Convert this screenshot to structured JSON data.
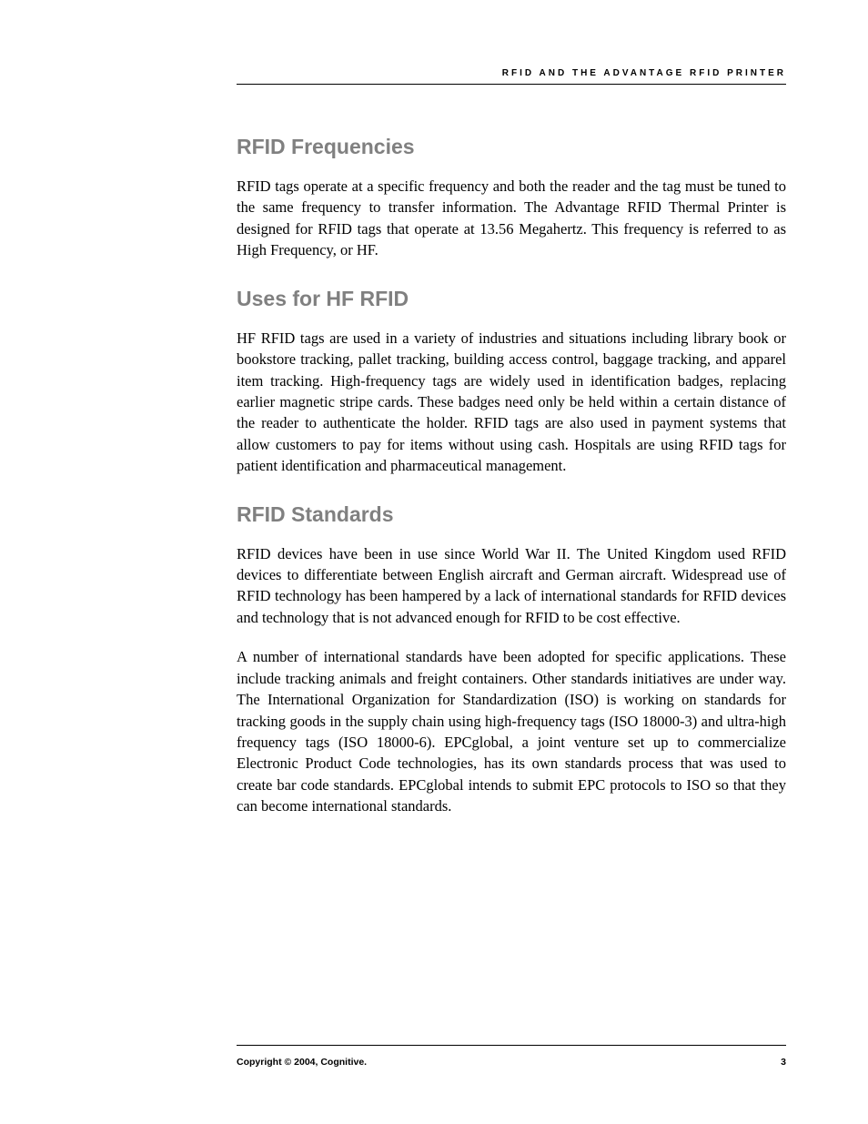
{
  "header": {
    "title": "RFID AND THE ADVANTAGE RFID PRINTER"
  },
  "sections": {
    "frequencies": {
      "heading": "RFID Frequencies",
      "paragraph": "RFID tags operate at a specific frequency and both the reader and the tag must be tuned to the same frequency to transfer information. The Advantage RFID Thermal Printer is designed for RFID tags that operate at 13.56 Megahertz. This frequency is referred to as High Frequency, or HF."
    },
    "uses": {
      "heading": "Uses for HF RFID",
      "paragraph": "HF RFID tags are used in a variety of industries and situations including library book or bookstore tracking, pallet tracking, building access control, baggage tracking, and apparel item tracking. High-frequency tags are widely used in identification badges, replacing earlier magnetic stripe cards. These badges need only be held within a certain distance of the reader to authenticate the holder. RFID tags are also used in payment systems that allow customers to pay for items without using cash. Hospitals are using RFID tags for patient identification and pharmaceutical management."
    },
    "standards": {
      "heading": "RFID Standards",
      "paragraph1": "RFID devices have been in use since World War II. The United Kingdom used RFID devices to differentiate between English aircraft and German aircraft. Widespread use of RFID technology has been hampered by a lack of international standards for RFID devices and technology that is not advanced enough for RFID to be cost effective.",
      "paragraph2": "A number of international standards have been adopted for specific applications. These include tracking animals and freight containers. Other standards initiatives are under way. The International Organization for Standardization (ISO) is working on standards for tracking goods in the supply chain using high-frequency tags (ISO 18000-3) and ultra-high frequency tags (ISO 18000-6). EPCglobal, a joint venture set up to commercialize Electronic Product Code technologies, has its own standards process that was used to create bar code standards. EPCglobal intends to submit EPC protocols to ISO so that they can become international standards."
    }
  },
  "footer": {
    "copyright": "Copyright © 2004, Cognitive.",
    "page": "3"
  }
}
